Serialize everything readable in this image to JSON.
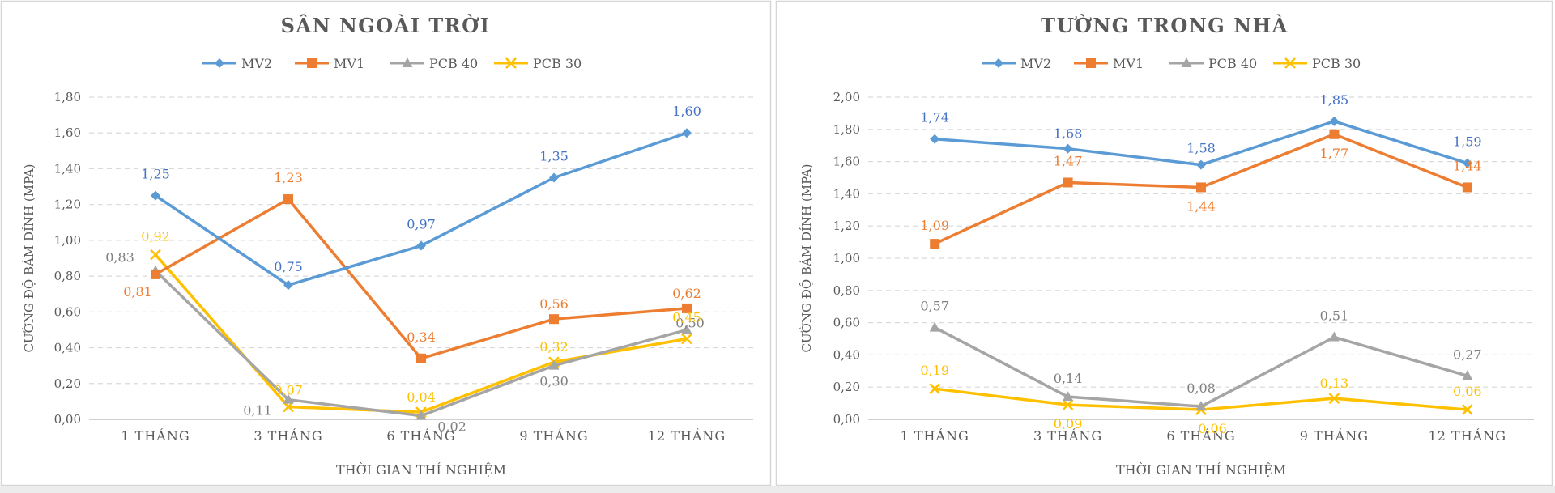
{
  "chart_data": [
    {
      "type": "line",
      "title": "SÂN NGOÀI TRỜI",
      "xlabel": "THỜI GIAN THÍ NGHIỆM",
      "ylabel": "CƯỜNG ĐỘ BÁM DÍNH (MPA)",
      "ylim": [
        0,
        1.8
      ],
      "yticks": [
        "0,00",
        "0,20",
        "0,40",
        "0,60",
        "0,80",
        "1,00",
        "1,20",
        "1,40",
        "1,60",
        "1,80"
      ],
      "categories": [
        "1 THÁNG",
        "3 THÁNG",
        "6 THÁNG",
        "9 THÁNG",
        "12 THÁNG"
      ],
      "grid": true,
      "legend": "top",
      "series": [
        {
          "name": "MV2",
          "color": "#5b9bd5",
          "marker": "diamond",
          "values": [
            1.25,
            0.75,
            0.97,
            1.35,
            1.6
          ],
          "labels": [
            "1,25",
            "0,75",
            "0,97",
            "1,35",
            "1,60"
          ]
        },
        {
          "name": "MV1",
          "color": "#ed7d31",
          "marker": "square",
          "values": [
            0.81,
            1.23,
            0.34,
            0.56,
            0.62
          ],
          "labels": [
            "0,81",
            "1,23",
            "0,34",
            "0,56",
            "0,62"
          ]
        },
        {
          "name": "PCB 40",
          "color": "#a5a5a5",
          "marker": "triangle",
          "values": [
            0.83,
            0.11,
            0.02,
            0.3,
            0.5
          ],
          "labels": [
            "0,83",
            "0,11",
            "0,02",
            "0,30",
            "0,50"
          ]
        },
        {
          "name": "PCB 30",
          "color": "#ffc000",
          "marker": "x",
          "values": [
            0.92,
            0.07,
            0.04,
            0.32,
            0.45
          ],
          "labels": [
            "0,92",
            "0,07",
            "0,04",
            "0,32",
            "0,45"
          ]
        }
      ]
    },
    {
      "type": "line",
      "title": "TƯỜNG TRONG NHÀ",
      "xlabel": "THỜI GIAN THÍ NGHIỆM",
      "ylabel": "CƯỜNG ĐỘ BÁM DÍNH (MPA)",
      "ylim": [
        0,
        2.0
      ],
      "yticks": [
        "0,00",
        "0,20",
        "0,40",
        "0,60",
        "0,80",
        "1,00",
        "1,20",
        "1,40",
        "1,60",
        "1,80",
        "2,00"
      ],
      "categories": [
        "1 THÁNG",
        "3 THÁNG",
        "6 THÁNG",
        "9 THÁNG",
        "12 THÁNG"
      ],
      "grid": true,
      "legend": "top",
      "series": [
        {
          "name": "MV2",
          "color": "#5b9bd5",
          "marker": "diamond",
          "values": [
            1.74,
            1.68,
            1.58,
            1.85,
            1.59
          ],
          "labels": [
            "1,74",
            "1,68",
            "1,58",
            "1,85",
            "1,59"
          ]
        },
        {
          "name": "MV1",
          "color": "#ed7d31",
          "marker": "square",
          "values": [
            1.09,
            1.47,
            1.44,
            1.77,
            1.44
          ],
          "labels": [
            "1,09",
            "1,47",
            "1,44",
            "1,77",
            "1,44"
          ]
        },
        {
          "name": "PCB 40",
          "color": "#a5a5a5",
          "marker": "triangle",
          "values": [
            0.57,
            0.14,
            0.08,
            0.51,
            0.27
          ],
          "labels": [
            "0,57",
            "0,14",
            "0,08",
            "0,51",
            "0,27"
          ]
        },
        {
          "name": "PCB 30",
          "color": "#ffc000",
          "marker": "x",
          "values": [
            0.19,
            0.09,
            0.06,
            0.13,
            0.06
          ],
          "labels": [
            "0,19",
            "0,09",
            "0,06",
            "0,13",
            "0,06"
          ]
        }
      ]
    }
  ]
}
